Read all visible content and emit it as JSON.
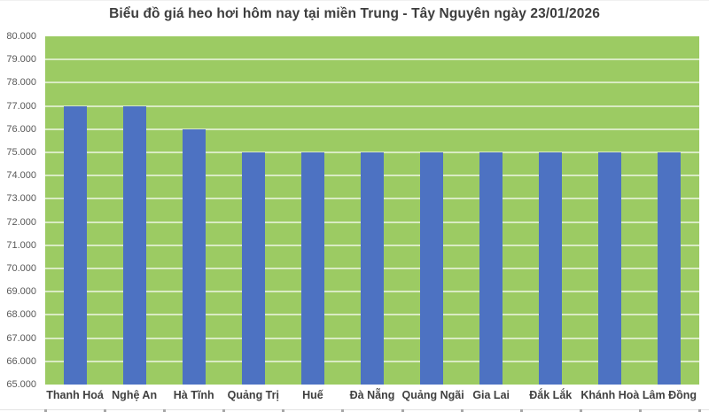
{
  "chart_data": {
    "type": "bar",
    "title": "Biểu đồ giá heo hơi hôm nay tại miền Trung - Tây Nguyên ngày 23/01/2026",
    "categories": [
      "Thanh Hoá",
      "Nghệ An",
      "Hà Tĩnh",
      "Quảng Trị",
      "Huế",
      "Đà Nẵng",
      "Quảng Ngãi",
      "Gia Lai",
      "Đắk Lắk",
      "Khánh Hoà",
      "Lâm Đồng"
    ],
    "values": [
      77000,
      77000,
      76000,
      75000,
      75000,
      75000,
      75000,
      75000,
      75000,
      75000,
      75000
    ],
    "xlabel": "",
    "ylabel": "",
    "ylim": [
      65000,
      80000
    ],
    "ytick_step": 1000,
    "ytick_labels": [
      "80.000",
      "79.000",
      "78.000",
      "77.000",
      "76.000",
      "75.000",
      "74.000",
      "73.000",
      "72.000",
      "71.000",
      "70.000",
      "69.000",
      "68.000",
      "67.000",
      "66.000",
      "65.000"
    ],
    "grid": "horizontal-only",
    "legend": "none",
    "colors": {
      "bar": "#4D72C2",
      "plot_background": "#9CCB63",
      "gridline": "rgba(255,255,255,0.62)",
      "title_text": "#3D3D3D",
      "ytick_text": "#595959",
      "xtick_text": "#404040"
    }
  }
}
